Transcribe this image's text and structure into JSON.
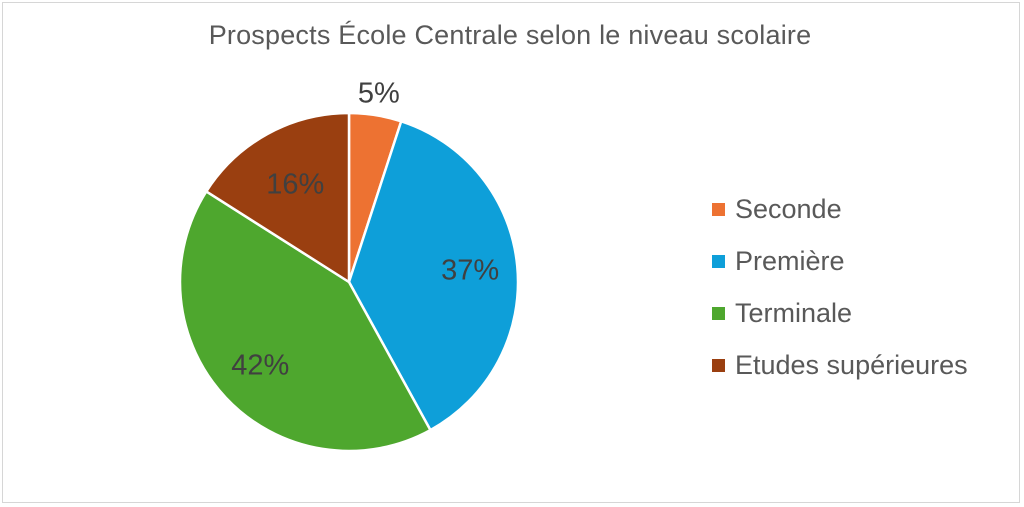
{
  "chart_data": {
    "type": "pie",
    "title": "Prospects École Centrale selon le niveau scolaire",
    "categories": [
      "Seconde",
      "Première",
      "Terminale",
      "Etudes supérieures"
    ],
    "values": [
      5,
      37,
      42,
      16
    ],
    "labels": [
      "5%",
      "37%",
      "42%",
      "16%"
    ],
    "colors": [
      "#ed7232",
      "#0e9fd9",
      "#4ea72e",
      "#9a3f10"
    ],
    "legend_position": "right",
    "start_angle_deg": 0,
    "direction": "clockwise"
  }
}
